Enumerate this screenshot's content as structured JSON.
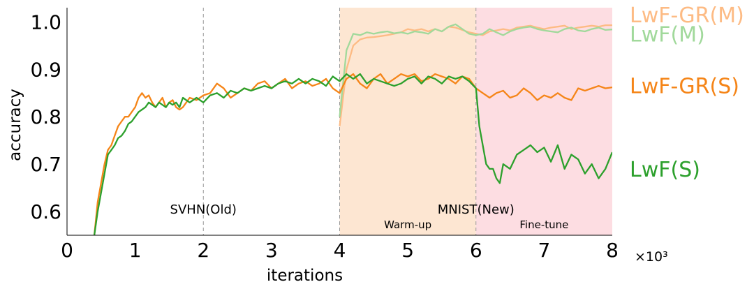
{
  "chart_data": {
    "type": "line",
    "xlabel": "iterations",
    "ylabel": "accuracy",
    "x_multiplier": "×10³",
    "xlim": [
      0,
      8
    ],
    "ylim": [
      0.55,
      1.03
    ],
    "xticks": [
      {
        "value": 0,
        "label": "0"
      },
      {
        "value": 1,
        "label": "1"
      },
      {
        "value": 2,
        "label": "2"
      },
      {
        "value": 3,
        "label": "3"
      },
      {
        "value": 4,
        "label": "4"
      },
      {
        "value": 5,
        "label": "5"
      },
      {
        "value": 6,
        "label": "6"
      },
      {
        "value": 7,
        "label": "7"
      },
      {
        "value": 8,
        "label": "8"
      }
    ],
    "yticks": [
      {
        "value": 0.6,
        "label": "0.6"
      },
      {
        "value": 0.7,
        "label": "0.7"
      },
      {
        "value": 0.8,
        "label": "0.8"
      },
      {
        "value": 0.9,
        "label": "0.9"
      },
      {
        "value": 1.0,
        "label": "1.0"
      }
    ],
    "grid": false,
    "legend": "right, labels beside line ends",
    "vlines": [
      2,
      4,
      6
    ],
    "regions": [
      {
        "x0": 4,
        "x1": 6,
        "color": "#fde6d2",
        "label": "Warm-up"
      },
      {
        "x0": 6,
        "x1": 8,
        "color": "#fddde2",
        "label": "Fine-tune"
      }
    ],
    "annotations": [
      {
        "text": "SVHN(Old)",
        "x": 2,
        "y": 0.6
      },
      {
        "text": "MNIST(New)",
        "x": 6,
        "y": 0.6
      }
    ],
    "series": [
      {
        "name": "LwF-GR(M)",
        "color": "#fdbb84",
        "legend_y": 1.015,
        "x": [
          4.0,
          4.1,
          4.2,
          4.3,
          4.4,
          4.5,
          4.6,
          4.7,
          4.8,
          4.9,
          5.0,
          5.1,
          5.2,
          5.3,
          5.4,
          5.5,
          5.6,
          5.7,
          5.8,
          5.9,
          6.0,
          6.1,
          6.2,
          6.3,
          6.4,
          6.5,
          6.6,
          6.7,
          6.8,
          6.9,
          7.0,
          7.1,
          7.2,
          7.3,
          7.4,
          7.5,
          7.6,
          7.7,
          7.8,
          7.9,
          8.0
        ],
        "y": [
          0.78,
          0.9,
          0.95,
          0.963,
          0.967,
          0.968,
          0.97,
          0.972,
          0.975,
          0.978,
          0.985,
          0.982,
          0.985,
          0.98,
          0.985,
          0.98,
          0.99,
          0.988,
          0.983,
          0.978,
          0.975,
          0.972,
          0.98,
          0.982,
          0.985,
          0.982,
          0.988,
          0.99,
          0.992,
          0.988,
          0.985,
          0.988,
          0.99,
          0.992,
          0.985,
          0.988,
          0.99,
          0.992,
          0.99,
          0.993,
          0.993
        ]
      },
      {
        "name": "LwF(M)",
        "color": "#a1d99b",
        "legend_y": 0.975,
        "x": [
          4.0,
          4.1,
          4.2,
          4.3,
          4.4,
          4.5,
          4.6,
          4.7,
          4.8,
          4.9,
          5.0,
          5.1,
          5.2,
          5.3,
          5.4,
          5.5,
          5.6,
          5.7,
          5.8,
          5.9,
          6.0,
          6.1,
          6.2,
          6.3,
          6.4,
          6.5,
          6.6,
          6.7,
          6.8,
          6.9,
          7.0,
          7.1,
          7.2,
          7.3,
          7.4,
          7.5,
          7.6,
          7.7,
          7.8,
          7.9,
          8.0
        ],
        "y": [
          0.8,
          0.94,
          0.975,
          0.972,
          0.978,
          0.975,
          0.978,
          0.98,
          0.976,
          0.978,
          0.975,
          0.98,
          0.978,
          0.975,
          0.985,
          0.98,
          0.99,
          0.995,
          0.985,
          0.975,
          0.972,
          0.975,
          0.985,
          0.978,
          0.972,
          0.98,
          0.985,
          0.988,
          0.99,
          0.985,
          0.982,
          0.98,
          0.978,
          0.985,
          0.988,
          0.982,
          0.98,
          0.985,
          0.988,
          0.983,
          0.984
        ]
      },
      {
        "name": "LwF-GR(S)",
        "color": "#f58518",
        "legend_y": 0.866,
        "x": [
          0.4,
          0.45,
          0.5,
          0.55,
          0.6,
          0.65,
          0.7,
          0.75,
          0.8,
          0.85,
          0.9,
          0.95,
          1.0,
          1.05,
          1.1,
          1.15,
          1.2,
          1.25,
          1.3,
          1.35,
          1.4,
          1.45,
          1.5,
          1.55,
          1.6,
          1.65,
          1.7,
          1.75,
          1.8,
          1.9,
          2.0,
          2.1,
          2.2,
          2.3,
          2.4,
          2.5,
          2.6,
          2.7,
          2.8,
          2.9,
          3.0,
          3.1,
          3.2,
          3.3,
          3.4,
          3.5,
          3.6,
          3.7,
          3.8,
          3.9,
          4.0,
          4.1,
          4.2,
          4.3,
          4.4,
          4.5,
          4.6,
          4.7,
          4.8,
          4.9,
          5.0,
          5.1,
          5.2,
          5.3,
          5.4,
          5.5,
          5.6,
          5.7,
          5.8,
          5.9,
          6.0,
          6.1,
          6.2,
          6.3,
          6.4,
          6.5,
          6.6,
          6.7,
          6.8,
          6.9,
          7.0,
          7.1,
          7.2,
          7.3,
          7.4,
          7.5,
          7.6,
          7.7,
          7.8,
          7.9,
          8.0
        ],
        "y": [
          0.55,
          0.62,
          0.66,
          0.7,
          0.73,
          0.74,
          0.76,
          0.78,
          0.79,
          0.8,
          0.8,
          0.81,
          0.82,
          0.84,
          0.85,
          0.84,
          0.845,
          0.83,
          0.82,
          0.83,
          0.84,
          0.82,
          0.83,
          0.835,
          0.82,
          0.815,
          0.82,
          0.83,
          0.84,
          0.835,
          0.845,
          0.85,
          0.87,
          0.86,
          0.84,
          0.85,
          0.86,
          0.855,
          0.87,
          0.875,
          0.86,
          0.87,
          0.88,
          0.86,
          0.87,
          0.875,
          0.865,
          0.87,
          0.88,
          0.86,
          0.85,
          0.88,
          0.89,
          0.87,
          0.86,
          0.88,
          0.89,
          0.87,
          0.88,
          0.89,
          0.885,
          0.89,
          0.875,
          0.88,
          0.89,
          0.885,
          0.88,
          0.87,
          0.885,
          0.88,
          0.86,
          0.85,
          0.84,
          0.85,
          0.855,
          0.84,
          0.845,
          0.86,
          0.85,
          0.835,
          0.845,
          0.84,
          0.85,
          0.84,
          0.835,
          0.86,
          0.855,
          0.86,
          0.865,
          0.86,
          0.862
        ]
      },
      {
        "name": "LwF(S)",
        "color": "#2ca02c",
        "legend_y": 0.69,
        "x": [
          0.4,
          0.45,
          0.5,
          0.55,
          0.6,
          0.65,
          0.7,
          0.75,
          0.8,
          0.85,
          0.9,
          0.95,
          1.0,
          1.05,
          1.1,
          1.15,
          1.2,
          1.25,
          1.3,
          1.35,
          1.4,
          1.45,
          1.5,
          1.55,
          1.6,
          1.65,
          1.7,
          1.75,
          1.8,
          1.9,
          2.0,
          2.1,
          2.2,
          2.3,
          2.4,
          2.5,
          2.6,
          2.7,
          2.8,
          2.9,
          3.0,
          3.1,
          3.2,
          3.3,
          3.4,
          3.5,
          3.6,
          3.7,
          3.8,
          3.9,
          4.0,
          4.1,
          4.2,
          4.3,
          4.4,
          4.5,
          4.6,
          4.7,
          4.8,
          4.9,
          5.0,
          5.1,
          5.2,
          5.3,
          5.4,
          5.5,
          5.6,
          5.7,
          5.8,
          5.9,
          6.0,
          6.05,
          6.1,
          6.15,
          6.2,
          6.25,
          6.3,
          6.35,
          6.4,
          6.5,
          6.6,
          6.7,
          6.8,
          6.9,
          7.0,
          7.1,
          7.2,
          7.3,
          7.4,
          7.5,
          7.6,
          7.7,
          7.8,
          7.9,
          8.0
        ],
        "y": [
          0.55,
          0.6,
          0.64,
          0.68,
          0.72,
          0.73,
          0.74,
          0.755,
          0.76,
          0.77,
          0.785,
          0.79,
          0.8,
          0.81,
          0.815,
          0.82,
          0.83,
          0.825,
          0.82,
          0.83,
          0.825,
          0.82,
          0.83,
          0.825,
          0.83,
          0.82,
          0.84,
          0.835,
          0.83,
          0.84,
          0.83,
          0.845,
          0.85,
          0.84,
          0.855,
          0.85,
          0.86,
          0.855,
          0.86,
          0.865,
          0.86,
          0.87,
          0.875,
          0.87,
          0.88,
          0.87,
          0.88,
          0.875,
          0.865,
          0.885,
          0.875,
          0.89,
          0.88,
          0.89,
          0.87,
          0.88,
          0.875,
          0.87,
          0.865,
          0.87,
          0.88,
          0.885,
          0.87,
          0.885,
          0.88,
          0.87,
          0.885,
          0.88,
          0.885,
          0.875,
          0.86,
          0.78,
          0.74,
          0.7,
          0.69,
          0.69,
          0.67,
          0.66,
          0.7,
          0.69,
          0.72,
          0.73,
          0.74,
          0.725,
          0.735,
          0.705,
          0.74,
          0.69,
          0.72,
          0.71,
          0.68,
          0.7,
          0.67,
          0.69,
          0.725
        ]
      }
    ]
  }
}
